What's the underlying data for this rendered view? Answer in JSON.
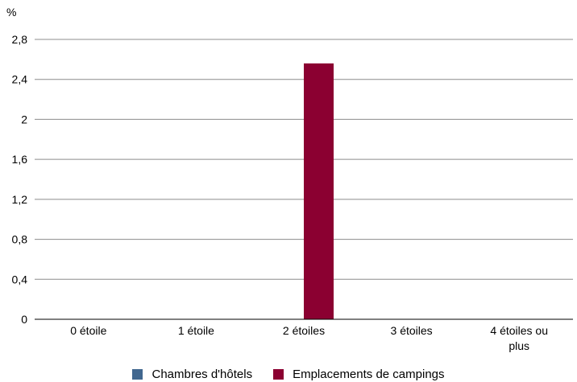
{
  "chart_data": {
    "type": "bar",
    "y_unit": "%",
    "categories": [
      "0 étoile",
      "1 étoile",
      "2 étoiles",
      "3 étoiles",
      "4 étoiles ou plus"
    ],
    "category_lines": [
      [
        "0 étoile"
      ],
      [
        "1 étoile"
      ],
      [
        "2 étoiles"
      ],
      [
        "3 étoiles"
      ],
      [
        "4 étoiles ou",
        "plus"
      ]
    ],
    "series": [
      {
        "name": "Chambres d'hôtels",
        "color": "#41678f",
        "values": [
          0,
          0,
          0,
          0,
          0
        ]
      },
      {
        "name": "Emplacements de campings",
        "color": "#8b0031",
        "values": [
          0,
          0,
          2.56,
          0,
          0
        ]
      }
    ],
    "ylim": [
      0,
      2.8
    ],
    "yticks": [
      "0",
      "0,4",
      "0,8",
      "1,2",
      "1,6",
      "2",
      "2,4",
      "2,8"
    ],
    "grid": true,
    "legend": "bottom-center"
  }
}
